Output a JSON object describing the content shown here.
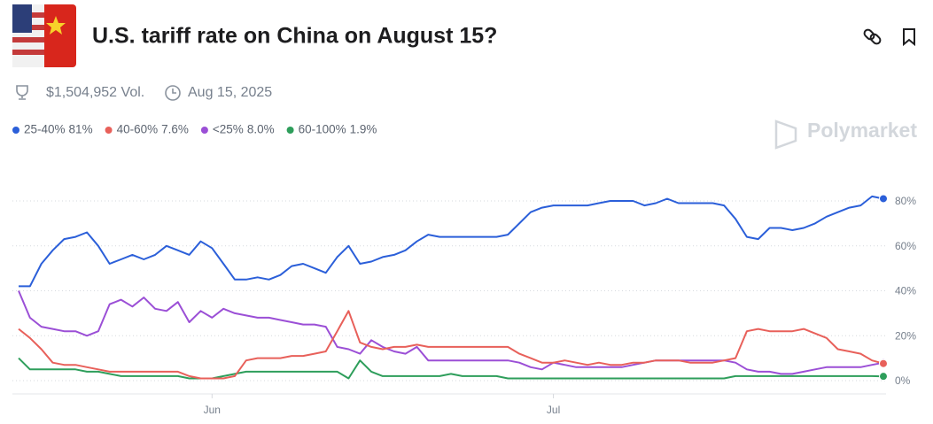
{
  "header": {
    "title": "U.S. tariff rate on China on August 15?",
    "volume": "$1,504,952 Vol.",
    "end_date": "Aug 15, 2025",
    "watermark": "Polymarket"
  },
  "chart_data": {
    "type": "line",
    "categories": [
      null,
      null,
      null,
      null,
      null,
      null,
      null,
      null,
      null,
      null,
      null,
      null,
      null,
      null,
      null,
      null,
      null,
      "Jun",
      null,
      null,
      null,
      null,
      null,
      null,
      null,
      null,
      null,
      null,
      null,
      null,
      null,
      null,
      null,
      null,
      null,
      null,
      null,
      null,
      null,
      null,
      null,
      null,
      null,
      null,
      null,
      null,
      null,
      "Jul",
      null,
      null,
      null,
      null,
      null,
      null,
      null,
      null,
      null,
      null,
      null,
      null,
      null,
      null,
      null,
      null,
      null,
      null,
      null,
      null,
      null,
      null,
      null,
      null,
      null,
      null,
      null,
      null,
      null
    ],
    "ylim": [
      0,
      80
    ],
    "yticks": [
      {
        "value": 0,
        "label": "0%"
      },
      {
        "value": 20,
        "label": "20%"
      },
      {
        "value": 40,
        "label": "40%"
      },
      {
        "value": 60,
        "label": "60%"
      },
      {
        "value": 80,
        "label": "80%"
      }
    ],
    "grid": true,
    "legend": "top-left",
    "series": [
      {
        "name": "25-40%",
        "color": "#2b5fd9",
        "last": 81,
        "last_label": "81%",
        "values": [
          42,
          42,
          52,
          58,
          63,
          64,
          66,
          60,
          52,
          54,
          56,
          54,
          56,
          60,
          58,
          56,
          62,
          59,
          52,
          45,
          45,
          46,
          45,
          47,
          51,
          52,
          50,
          48,
          55,
          60,
          52,
          53,
          55,
          56,
          58,
          62,
          65,
          64,
          64,
          64,
          64,
          64,
          64,
          65,
          70,
          75,
          77,
          78,
          78,
          78,
          78,
          79,
          80,
          80,
          80,
          78,
          79,
          81,
          79,
          79,
          79,
          79,
          78,
          72,
          64,
          63,
          68,
          68,
          67,
          68,
          70,
          73,
          75,
          77,
          78,
          82,
          81
        ]
      },
      {
        "name": "40-60%",
        "color": "#e8605a",
        "last": 7.6,
        "last_label": "7.6%",
        "values": [
          23,
          19,
          14,
          8,
          7,
          7,
          6,
          5,
          4,
          4,
          4,
          4,
          4,
          4,
          4,
          2,
          1,
          1,
          1,
          2,
          9,
          10,
          10,
          10,
          11,
          11,
          12,
          13,
          22,
          31,
          17,
          15,
          14,
          15,
          15,
          16,
          15,
          15,
          15,
          15,
          15,
          15,
          15,
          15,
          12,
          10,
          8,
          8,
          9,
          8,
          7,
          8,
          7,
          7,
          8,
          8,
          9,
          9,
          9,
          8,
          8,
          8,
          9,
          10,
          22,
          23,
          22,
          22,
          22,
          23,
          21,
          19,
          14,
          13,
          12,
          9,
          7.6
        ]
      },
      {
        "name": "<25%",
        "color": "#9b4fd6",
        "last": 8.0,
        "last_label": "8.0%",
        "values": [
          40,
          28,
          24,
          23,
          22,
          22,
          20,
          22,
          34,
          36,
          33,
          37,
          32,
          31,
          35,
          26,
          31,
          28,
          32,
          30,
          29,
          28,
          28,
          27,
          26,
          25,
          25,
          24,
          15,
          14,
          12,
          18,
          15,
          13,
          12,
          15,
          9,
          9,
          9,
          9,
          9,
          9,
          9,
          9,
          8,
          6,
          5,
          8,
          7,
          6,
          6,
          6,
          6,
          6,
          7,
          8,
          9,
          9,
          9,
          9,
          9,
          9,
          9,
          8,
          5,
          4,
          4,
          3,
          3,
          4,
          5,
          6,
          6,
          6,
          6,
          7,
          8
        ]
      },
      {
        "name": "60-100%",
        "color": "#2e9e5b",
        "last": 1.9,
        "last_label": "1.9%",
        "values": [
          10,
          5,
          5,
          5,
          5,
          5,
          4,
          4,
          3,
          2,
          2,
          2,
          2,
          2,
          2,
          1,
          1,
          1,
          2,
          3,
          4,
          4,
          4,
          4,
          4,
          4,
          4,
          4,
          4,
          1,
          9,
          4,
          2,
          2,
          2,
          2,
          2,
          2,
          3,
          2,
          2,
          2,
          2,
          1,
          1,
          1,
          1,
          1,
          1,
          1,
          1,
          1,
          1,
          1,
          1,
          1,
          1,
          1,
          1,
          1,
          1,
          1,
          1,
          2,
          2,
          2,
          2,
          2,
          2,
          2,
          2,
          2,
          2,
          2,
          2,
          2,
          1.9
        ]
      }
    ]
  }
}
